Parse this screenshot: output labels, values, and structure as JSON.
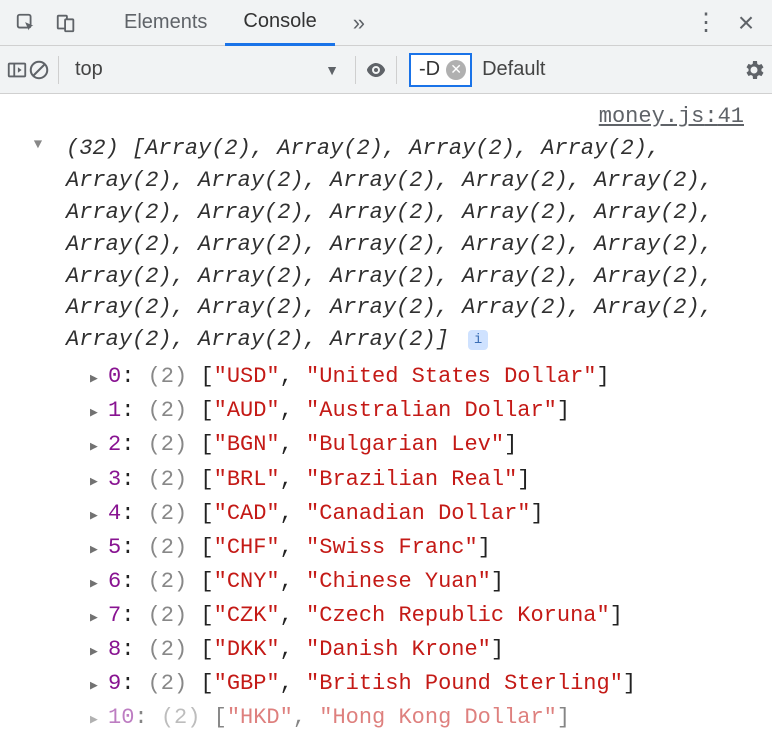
{
  "colors": {
    "accent": "#1a73e8",
    "string": "#c41a16",
    "index": "#881391",
    "muted": "#888888",
    "toolbar_bg": "#f1f3f4",
    "border": "#d0d0d0"
  },
  "tabbar": {
    "tabs": {
      "elements": "Elements",
      "console": "Console",
      "more": "»"
    },
    "more_menu": "⋮",
    "close": "×"
  },
  "toolbar": {
    "context": "top",
    "filter_value": "-D",
    "levels_label": "Default levels"
  },
  "source": {
    "file": "money.js",
    "line": "41"
  },
  "log": {
    "total_label": "(32)",
    "preview": " [Array(2), Array(2), Array(2), Array(2), Array(2), Array(2), Array(2), Array(2), Array(2), Array(2), Array(2), Array(2), Array(2), Array(2), Array(2), Array(2), Array(2), Array(2), Array(2), Array(2), Array(2), Array(2), Array(2), Array(2), Array(2), Array(2), Array(2), Array(2), Array(2), Array(2), Array(2), Array(2)]",
    "item_length": "(2)",
    "entries": [
      {
        "i": "0",
        "code": "USD",
        "name": "United States Dollar"
      },
      {
        "i": "1",
        "code": "AUD",
        "name": "Australian Dollar"
      },
      {
        "i": "2",
        "code": "BGN",
        "name": "Bulgarian Lev"
      },
      {
        "i": "3",
        "code": "BRL",
        "name": "Brazilian Real"
      },
      {
        "i": "4",
        "code": "CAD",
        "name": "Canadian Dollar"
      },
      {
        "i": "5",
        "code": "CHF",
        "name": "Swiss Franc"
      },
      {
        "i": "6",
        "code": "CNY",
        "name": "Chinese Yuan"
      },
      {
        "i": "7",
        "code": "CZK",
        "name": "Czech Republic Koruna"
      },
      {
        "i": "8",
        "code": "DKK",
        "name": "Danish Krone"
      },
      {
        "i": "9",
        "code": "GBP",
        "name": "British Pound Sterling"
      }
    ],
    "partial": {
      "i": "10",
      "code": "HKD",
      "name": "Hong Kong Dollar"
    }
  }
}
